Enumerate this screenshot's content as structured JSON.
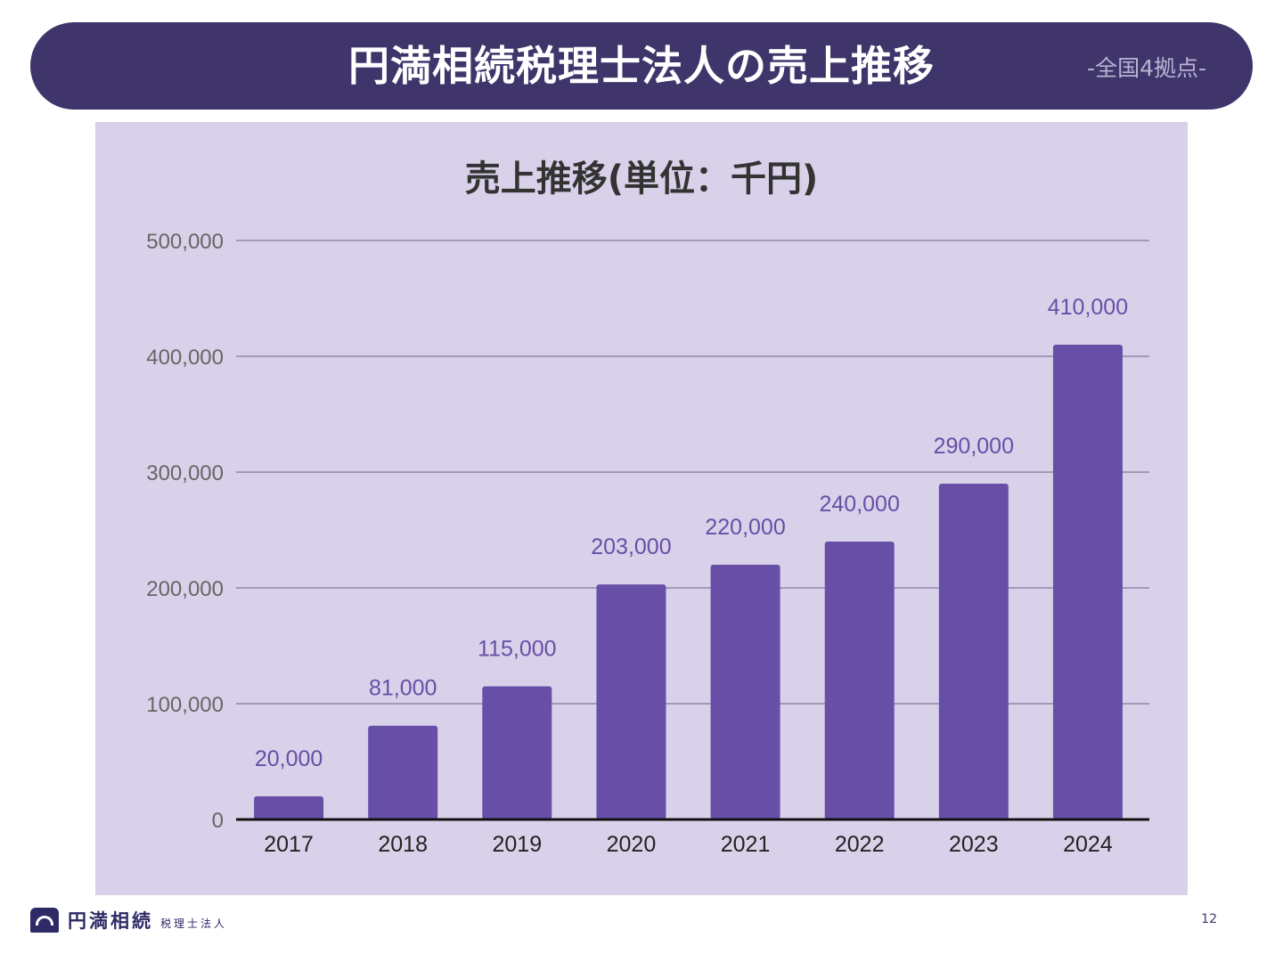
{
  "header": {
    "title": "円満相続税理士法人の売上推移",
    "subtitle": "-全国4拠点-"
  },
  "footer": {
    "logo_main": "円満相続",
    "logo_sub": "税理士法人",
    "page_number": "12"
  },
  "colors": {
    "header_bg": "#3f356b",
    "panel_bg": "#d9d1e9",
    "bar": "#674fa7",
    "data_label": "#674fa7"
  },
  "chart_data": {
    "type": "bar",
    "title": "売上推移(単位：千円)",
    "xlabel": "",
    "ylabel": "",
    "categories": [
      "2017",
      "2018",
      "2019",
      "2020",
      "2021",
      "2022",
      "2023",
      "2024"
    ],
    "values": [
      20000,
      81000,
      115000,
      203000,
      220000,
      240000,
      290000,
      410000
    ],
    "data_labels": [
      "20,000",
      "81,000",
      "115,000",
      "203,000",
      "220,000",
      "240,000",
      "290,000",
      "410,000"
    ],
    "ylim": [
      0,
      500000
    ],
    "yticks": [
      0,
      100000,
      200000,
      300000,
      400000,
      500000
    ],
    "ytick_labels": [
      "0",
      "100,000",
      "200,000",
      "300,000",
      "400,000",
      "500,000"
    ],
    "grid": true,
    "legend": "none"
  }
}
